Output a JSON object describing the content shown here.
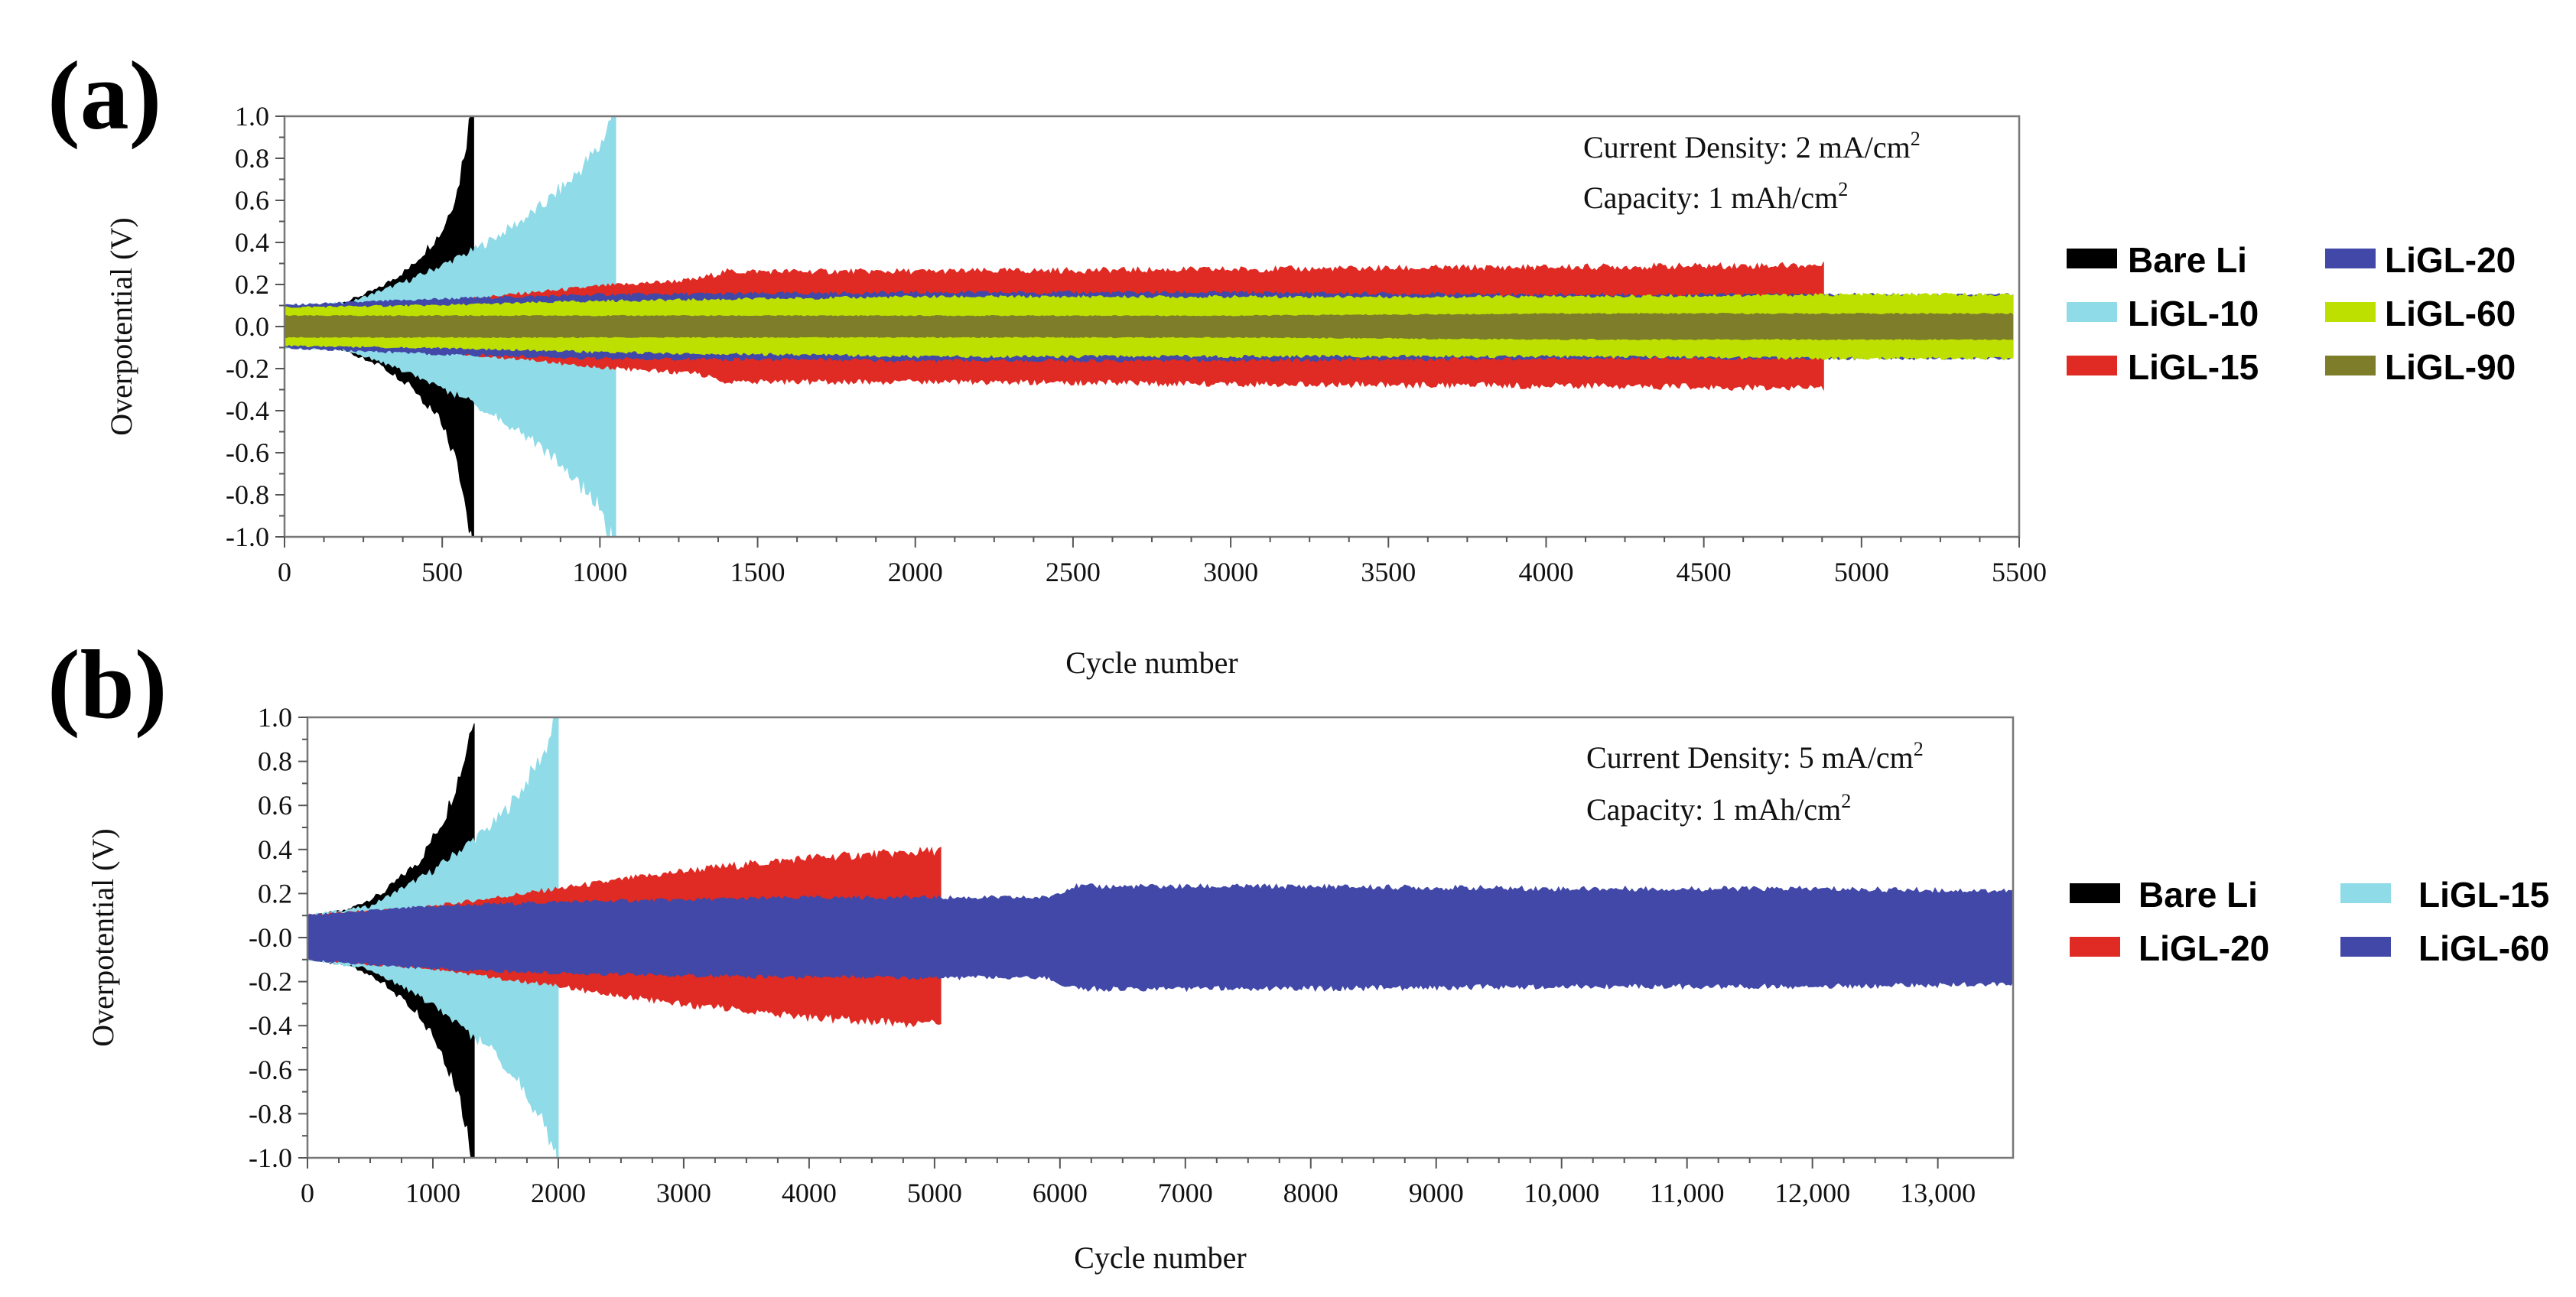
{
  "chart_data": [
    {
      "type": "area",
      "panel_label": "(a)",
      "xlabel": "Cycle number",
      "ylabel": "Overpotential (V)",
      "xlim": [
        0,
        5500
      ],
      "ylim": [
        -1.0,
        1.0
      ],
      "x_ticks": [
        0,
        500,
        1000,
        1500,
        2000,
        2500,
        3000,
        3500,
        4000,
        4500,
        5000,
        5500
      ],
      "x_tick_labels": [
        "0",
        "500",
        "1000",
        "1500",
        "2000",
        "2500",
        "3000",
        "3500",
        "4000",
        "4500",
        "5000",
        "5500"
      ],
      "y_ticks": [
        1.0,
        0.8,
        0.6,
        0.4,
        0.2,
        0.0,
        -0.2,
        -0.4,
        -0.6,
        -0.8,
        -1.0
      ],
      "y_tick_labels": [
        "1.0",
        "0.8",
        "0.6",
        "0.4",
        "0.2",
        "0.0",
        "-0.2",
        "-0.4",
        "-0.6",
        "-0.8",
        "-1.0"
      ],
      "annotations": [
        {
          "text": "Current Density: 2 mA/cm",
          "sup": "2"
        },
        {
          "text": "Capacity: 1 mAh/cm",
          "sup": "2"
        }
      ],
      "legend_position": "right",
      "series": [
        {
          "name": "Bare Li",
          "color": "#000000",
          "cycles": [
            0,
            100,
            200,
            300,
            400,
            500,
            550,
            590,
            600
          ],
          "envelope": [
            0.1,
            0.08,
            0.12,
            0.18,
            0.28,
            0.45,
            0.65,
            1.0,
            1.05
          ]
        },
        {
          "name": "LiGL-10",
          "color": "#8fdbe8",
          "cycles": [
            0,
            200,
            400,
            600,
            700,
            800,
            900,
            1000,
            1050
          ],
          "envelope": [
            0.1,
            0.11,
            0.22,
            0.36,
            0.45,
            0.55,
            0.68,
            0.85,
            1.05
          ]
        },
        {
          "name": "LiGL-15",
          "color": "#e02a24",
          "cycles": [
            0,
            500,
            1000,
            1300,
            1400,
            2000,
            3000,
            4000,
            4880
          ],
          "envelope": [
            0.09,
            0.12,
            0.19,
            0.22,
            0.26,
            0.26,
            0.27,
            0.28,
            0.29
          ]
        },
        {
          "name": "LiGL-20",
          "color": "#4148a8",
          "cycles": [
            0,
            500,
            1000,
            2000,
            3000,
            4000,
            5000,
            5480
          ],
          "envelope": [
            0.1,
            0.13,
            0.15,
            0.16,
            0.16,
            0.15,
            0.15,
            0.15
          ]
        },
        {
          "name": "LiGL-60",
          "color": "#bde000",
          "cycles": [
            0,
            500,
            1000,
            2000,
            3000,
            4000,
            5000,
            5480
          ],
          "envelope": [
            0.09,
            0.1,
            0.12,
            0.14,
            0.14,
            0.14,
            0.15,
            0.15
          ]
        },
        {
          "name": "LiGL-90",
          "color": "#7d7d2a",
          "cycles": [
            0,
            500,
            1000,
            2000,
            3000,
            4000,
            5000,
            5480
          ],
          "envelope": [
            0.05,
            0.05,
            0.05,
            0.05,
            0.05,
            0.06,
            0.06,
            0.06
          ]
        }
      ]
    },
    {
      "type": "area",
      "panel_label": "(b)",
      "xlabel": "Cycle number",
      "ylabel": "Overpotential (V)",
      "xlim": [
        0,
        13600
      ],
      "ylim": [
        -1.0,
        1.0
      ],
      "x_ticks": [
        0,
        1000,
        2000,
        3000,
        4000,
        5000,
        6000,
        7000,
        8000,
        9000,
        10000,
        11000,
        12000,
        13000
      ],
      "x_tick_labels": [
        "0",
        "1000",
        "2000",
        "3000",
        "4000",
        "5000",
        "6000",
        "7000",
        "8000",
        "9000",
        "10,000",
        "11,000",
        "12,000",
        "13,000"
      ],
      "y_ticks": [
        1.0,
        0.8,
        0.6,
        0.4,
        0.2,
        0.0,
        -0.2,
        -0.4,
        -0.6,
        -0.8,
        -1.0
      ],
      "y_tick_labels": [
        "1.0",
        "0.8",
        "0.6",
        "0.4",
        "0.2",
        "-0.0",
        "-0.2",
        "-0.4",
        "-0.6",
        "-0.8",
        "-1.0"
      ],
      "annotations": [
        {
          "text": "Current Density: 5 mA/cm",
          "sup": "2"
        },
        {
          "text": "Capacity: 1 mAh/cm",
          "sup": "2"
        }
      ],
      "legend_position": "right",
      "series": [
        {
          "name": "Bare Li",
          "color": "#000000",
          "cycles": [
            0,
            300,
            600,
            900,
            1100,
            1250,
            1330
          ],
          "envelope": [
            0.1,
            0.12,
            0.2,
            0.35,
            0.55,
            0.8,
            1.03
          ]
        },
        {
          "name": "LiGL-15",
          "color": "#8fdbe8",
          "cycles": [
            0,
            500,
            1000,
            1500,
            1700,
            1900,
            2000
          ],
          "envelope": [
            0.1,
            0.14,
            0.3,
            0.52,
            0.66,
            0.85,
            1.03
          ]
        },
        {
          "name": "LiGL-20",
          "color": "#e02a24",
          "cycles": [
            0,
            1000,
            2000,
            3000,
            4000,
            5000,
            5050
          ],
          "envelope": [
            0.1,
            0.14,
            0.22,
            0.3,
            0.36,
            0.39,
            0.4
          ]
        },
        {
          "name": "LiGL-60",
          "color": "#4148a8",
          "cycles": [
            0,
            1000,
            2000,
            4000,
            5900,
            6100,
            8000,
            10000,
            12000,
            13600
          ],
          "envelope": [
            0.1,
            0.14,
            0.16,
            0.18,
            0.18,
            0.23,
            0.23,
            0.22,
            0.22,
            0.21
          ]
        }
      ]
    }
  ]
}
